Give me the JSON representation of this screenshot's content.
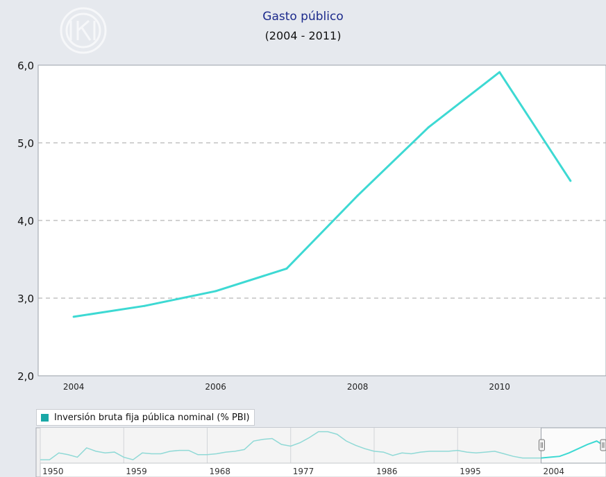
{
  "chart_data": {
    "type": "line",
    "title": "Gasto público",
    "subtitle": "(2004 - 2011)",
    "xlabel": "",
    "ylabel": "",
    "x": [
      2004,
      2005,
      2006,
      2007,
      2008,
      2009,
      2010,
      2011
    ],
    "series": [
      {
        "name": "Inversión bruta fija pública nominal (% PBI)",
        "values": [
          2.76,
          2.9,
          3.09,
          3.38,
          4.32,
          5.2,
          5.91,
          4.51
        ]
      }
    ],
    "xlim": [
      2003.5,
      2011.5
    ],
    "ylim": [
      2.0,
      6.0
    ],
    "x_ticks": [
      "2004",
      "2006",
      "2008",
      "2010"
    ],
    "y_ticks": [
      "2,0",
      "3,0",
      "4,0",
      "5,0",
      "6,0"
    ],
    "grid": "horizontal dashed",
    "line_color": "#3dd9d3",
    "legend": {
      "position": "bottom-left",
      "swatch_color": "#1aa8a6"
    },
    "navigator": {
      "tick_labels": [
        "1950",
        "1959",
        "1968",
        "1977",
        "1986",
        "1995",
        "2004"
      ],
      "x_range": [
        1950,
        2011
      ],
      "selected_range": [
        2004,
        2011
      ],
      "overview_values": [
        [
          1950,
          1.2
        ],
        [
          1951,
          1.2
        ],
        [
          1952,
          1.6
        ],
        [
          1953,
          1.5
        ],
        [
          1954,
          1.35
        ],
        [
          1955,
          1.9
        ],
        [
          1956,
          1.7
        ],
        [
          1957,
          1.6
        ],
        [
          1958,
          1.65
        ],
        [
          1959,
          1.35
        ],
        [
          1960,
          1.2
        ],
        [
          1961,
          1.6
        ],
        [
          1962,
          1.55
        ],
        [
          1963,
          1.55
        ],
        [
          1964,
          1.7
        ],
        [
          1965,
          1.75
        ],
        [
          1966,
          1.75
        ],
        [
          1967,
          1.5
        ],
        [
          1968,
          1.5
        ],
        [
          1969,
          1.55
        ],
        [
          1970,
          1.65
        ],
        [
          1971,
          1.7
        ],
        [
          1972,
          1.8
        ],
        [
          1973,
          2.3
        ],
        [
          1974,
          2.4
        ],
        [
          1975,
          2.45
        ],
        [
          1976,
          2.1
        ],
        [
          1977,
          2.0
        ],
        [
          1978,
          2.2
        ],
        [
          1979,
          2.5
        ],
        [
          1980,
          2.85
        ],
        [
          1981,
          2.85
        ],
        [
          1982,
          2.7
        ],
        [
          1983,
          2.3
        ],
        [
          1984,
          2.05
        ],
        [
          1985,
          1.85
        ],
        [
          1986,
          1.7
        ],
        [
          1987,
          1.65
        ],
        [
          1988,
          1.45
        ],
        [
          1989,
          1.6
        ],
        [
          1990,
          1.55
        ],
        [
          1991,
          1.65
        ],
        [
          1992,
          1.7
        ],
        [
          1993,
          1.7
        ],
        [
          1994,
          1.7
        ],
        [
          1995,
          1.75
        ],
        [
          1996,
          1.65
        ],
        [
          1997,
          1.6
        ],
        [
          1998,
          1.65
        ],
        [
          1999,
          1.7
        ],
        [
          2000,
          1.55
        ],
        [
          2001,
          1.4
        ],
        [
          2002,
          1.3
        ],
        [
          2003,
          1.3
        ],
        [
          2004,
          1.3
        ],
        [
          2005,
          1.35
        ],
        [
          2006,
          1.4
        ],
        [
          2007,
          1.6
        ],
        [
          2008,
          1.85
        ],
        [
          2009,
          2.1
        ],
        [
          2010,
          2.3
        ],
        [
          2011,
          1.95
        ]
      ],
      "overview_ylim": [
        1.0,
        3.0
      ]
    }
  }
}
